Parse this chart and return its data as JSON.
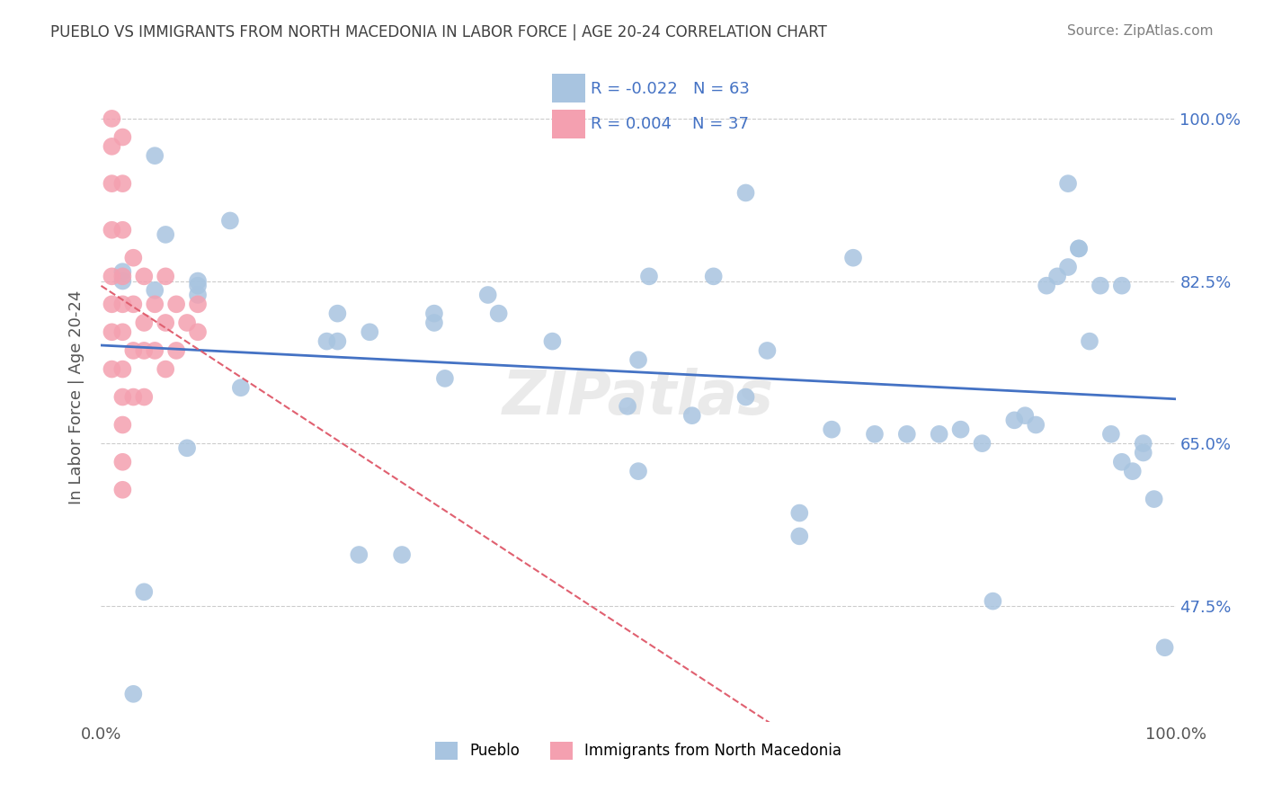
{
  "title": "PUEBLO VS IMMIGRANTS FROM NORTH MACEDONIA IN LABOR FORCE | AGE 20-24 CORRELATION CHART",
  "source": "Source: ZipAtlas.com",
  "ylabel": "In Labor Force | Age 20-24",
  "xlabel_bottom_left": "0.0%",
  "xlabel_bottom_right": "100.0%",
  "ytick_labels": [
    "47.5%",
    "65.0%",
    "82.5%",
    "100.0%"
  ],
  "ytick_values": [
    0.475,
    0.65,
    0.825,
    1.0
  ],
  "xlim": [
    0.0,
    1.0
  ],
  "ylim": [
    0.35,
    1.05
  ],
  "legend_labels": [
    "Pueblo",
    "Immigrants from North Macedonia"
  ],
  "blue_R": "-0.022",
  "blue_N": "63",
  "pink_R": "0.004",
  "pink_N": "37",
  "blue_color": "#a8c4e0",
  "pink_color": "#f4a0b0",
  "blue_line_color": "#4472c4",
  "pink_line_color": "#e06070",
  "title_color": "#404040",
  "source_color": "#808080",
  "text_color": "#4472c4",
  "watermark": "ZIPatlas",
  "blue_points_x": [
    0.02,
    0.02,
    0.05,
    0.06,
    0.05,
    0.09,
    0.09,
    0.09,
    0.22,
    0.21,
    0.22,
    0.25,
    0.31,
    0.31,
    0.32,
    0.37,
    0.36,
    0.5,
    0.5,
    0.49,
    0.51,
    0.57,
    0.6,
    0.65,
    0.65,
    0.68,
    0.75,
    0.78,
    0.8,
    0.82,
    0.85,
    0.87,
    0.88,
    0.89,
    0.9,
    0.91,
    0.91,
    0.93,
    0.94,
    0.95,
    0.96,
    0.97,
    0.98,
    0.99,
    0.9,
    0.7,
    0.6,
    0.12,
    0.13,
    0.04,
    0.08,
    0.24,
    0.28,
    0.42,
    0.55,
    0.62,
    0.72,
    0.83,
    0.86,
    0.92,
    0.95,
    0.97,
    0.03
  ],
  "blue_points_y": [
    0.835,
    0.825,
    0.96,
    0.875,
    0.815,
    0.82,
    0.825,
    0.81,
    0.79,
    0.76,
    0.76,
    0.77,
    0.78,
    0.79,
    0.72,
    0.79,
    0.81,
    0.74,
    0.62,
    0.69,
    0.83,
    0.83,
    0.7,
    0.575,
    0.55,
    0.665,
    0.66,
    0.66,
    0.665,
    0.65,
    0.675,
    0.67,
    0.82,
    0.83,
    0.84,
    0.86,
    0.86,
    0.82,
    0.66,
    0.63,
    0.62,
    0.64,
    0.59,
    0.43,
    0.93,
    0.85,
    0.92,
    0.89,
    0.71,
    0.49,
    0.645,
    0.53,
    0.53,
    0.76,
    0.68,
    0.75,
    0.66,
    0.48,
    0.68,
    0.76,
    0.82,
    0.65,
    0.38
  ],
  "pink_points_x": [
    0.01,
    0.01,
    0.01,
    0.01,
    0.01,
    0.01,
    0.01,
    0.01,
    0.02,
    0.02,
    0.02,
    0.02,
    0.02,
    0.02,
    0.02,
    0.02,
    0.02,
    0.02,
    0.02,
    0.03,
    0.03,
    0.03,
    0.03,
    0.04,
    0.04,
    0.04,
    0.04,
    0.05,
    0.05,
    0.06,
    0.06,
    0.06,
    0.07,
    0.07,
    0.08,
    0.09,
    0.09
  ],
  "pink_points_y": [
    1.0,
    0.97,
    0.93,
    0.88,
    0.83,
    0.8,
    0.77,
    0.73,
    0.98,
    0.93,
    0.88,
    0.83,
    0.8,
    0.77,
    0.73,
    0.7,
    0.67,
    0.63,
    0.6,
    0.85,
    0.8,
    0.75,
    0.7,
    0.83,
    0.78,
    0.75,
    0.7,
    0.8,
    0.75,
    0.83,
    0.78,
    0.73,
    0.8,
    0.75,
    0.78,
    0.8,
    0.77
  ]
}
